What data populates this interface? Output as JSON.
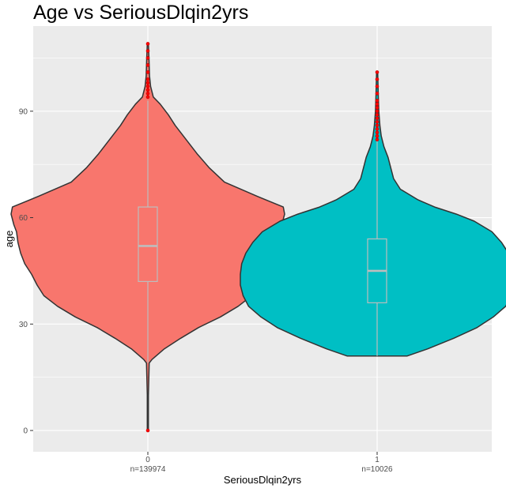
{
  "chart_data": {
    "type": "violin",
    "title": "Age vs SeriousDlqin2yrs",
    "xlabel": "SeriousDlqin2yrs",
    "ylabel": "age",
    "ylim": [
      -6,
      114
    ],
    "yticks": [
      0,
      30,
      60,
      90
    ],
    "grid": true,
    "legend": "none",
    "groups": [
      {
        "category": "0",
        "count_label": "n=139974",
        "fill": "#F8766D",
        "box": {
          "q1": 42,
          "median": 52,
          "q3": 63,
          "whisker_low": 19,
          "whisker_high": 93
        },
        "outliers": [
          0,
          94,
          95,
          96,
          97,
          98,
          99,
          101,
          103,
          105,
          107,
          109
        ],
        "density": [
          [
            0,
            0.004
          ],
          [
            10,
            0.004
          ],
          [
            19,
            0.01
          ],
          [
            20,
            0.03
          ],
          [
            23,
            0.12
          ],
          [
            26,
            0.24
          ],
          [
            29,
            0.37
          ],
          [
            32,
            0.53
          ],
          [
            35,
            0.66
          ],
          [
            38,
            0.76
          ],
          [
            41,
            0.81
          ],
          [
            44,
            0.85
          ],
          [
            47,
            0.9
          ],
          [
            50,
            0.93
          ],
          [
            53,
            0.95
          ],
          [
            56,
            0.96
          ],
          [
            58,
            0.98
          ],
          [
            61,
            1.0
          ],
          [
            63,
            0.99
          ],
          [
            66,
            0.8
          ],
          [
            70,
            0.56
          ],
          [
            74,
            0.45
          ],
          [
            78,
            0.36
          ],
          [
            82,
            0.28
          ],
          [
            86,
            0.2
          ],
          [
            89,
            0.15
          ],
          [
            92,
            0.09
          ],
          [
            94,
            0.04
          ],
          [
            97,
            0.02
          ],
          [
            100,
            0.012
          ],
          [
            105,
            0.008
          ],
          [
            109,
            0.004
          ]
        ]
      },
      {
        "category": "1",
        "count_label": "n=10026",
        "fill": "#00BFC4",
        "box": {
          "q1": 36,
          "median": 45,
          "q3": 54,
          "whisker_low": 21,
          "whisker_high": 82
        },
        "outliers": [
          82,
          83,
          84,
          85,
          86,
          87,
          88,
          89,
          90,
          91,
          92,
          93,
          95,
          97,
          99,
          101
        ],
        "density": [
          [
            21,
            0.22
          ],
          [
            23,
            0.37
          ],
          [
            26,
            0.56
          ],
          [
            29,
            0.73
          ],
          [
            32,
            0.85
          ],
          [
            35,
            0.94
          ],
          [
            38,
            0.98
          ],
          [
            41,
            1.0
          ],
          [
            44,
            1.0
          ],
          [
            47,
            0.99
          ],
          [
            50,
            0.96
          ],
          [
            53,
            0.91
          ],
          [
            56,
            0.84
          ],
          [
            59,
            0.71
          ],
          [
            61,
            0.58
          ],
          [
            63,
            0.42
          ],
          [
            65,
            0.3
          ],
          [
            68,
            0.17
          ],
          [
            71,
            0.12
          ],
          [
            74,
            0.1
          ],
          [
            77,
            0.08
          ],
          [
            80,
            0.05
          ],
          [
            83,
            0.03
          ],
          [
            86,
            0.02
          ],
          [
            90,
            0.012
          ],
          [
            95,
            0.008
          ],
          [
            101,
            0.004
          ]
        ]
      }
    ]
  }
}
